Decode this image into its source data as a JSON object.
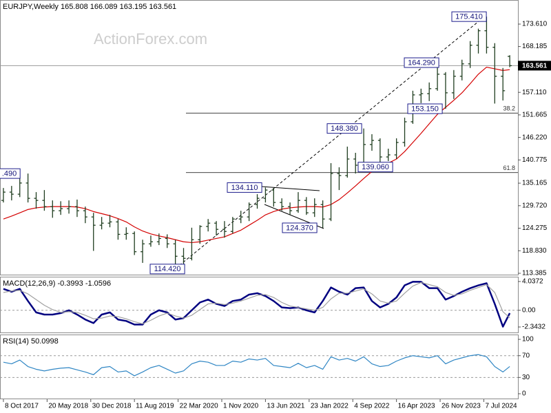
{
  "chart_data": [
    {
      "type": "ohlc",
      "title": "EURJPY,Weekly 165.808 166.089 163.195 163.561",
      "watermark": "ActionForex.com",
      "color": "#1f3d1f",
      "x": [
        0,
        6,
        12,
        18,
        24,
        30,
        36,
        42,
        48,
        54,
        60,
        66,
        72,
        78,
        84,
        90,
        96,
        102,
        108,
        114,
        120,
        126,
        132,
        138,
        144,
        150,
        156,
        162,
        168,
        174,
        180,
        186,
        192,
        198,
        204,
        210,
        216,
        222,
        228,
        234,
        240,
        246,
        252,
        258,
        264,
        270,
        276,
        282,
        288,
        294,
        300,
        306,
        312,
        318,
        324,
        330,
        336,
        342,
        348,
        354,
        360,
        366,
        371
      ],
      "open": [
        131.0,
        133.0,
        132.5,
        135.2,
        131.5,
        131.0,
        129.5,
        128.5,
        129.0,
        129.5,
        128.5,
        127.0,
        125.0,
        125.5,
        125.8,
        122.8,
        123.0,
        118.6,
        120.5,
        121.0,
        121.8,
        120.5,
        117.5,
        117.0,
        121.5,
        124.7,
        125.5,
        124.0,
        123.5,
        126.5,
        127.0,
        130.0,
        131.5,
        133.5,
        130.5,
        129.5,
        128.5,
        131.0,
        128.0,
        130.0,
        126.5,
        137.5,
        137.0,
        141.0,
        139.5,
        144.5,
        145.5,
        141.5,
        142.0,
        145.0,
        150.0,
        156.5,
        156.8,
        158.0,
        161.5,
        157.0,
        161.0,
        164.0,
        168.5,
        172.0,
        168.0,
        161.0,
        165.808
      ],
      "high": [
        134.0,
        134.5,
        136.5,
        137.49,
        133.0,
        133.5,
        131.0,
        130.8,
        131.0,
        131.2,
        129.5,
        128.0,
        127.0,
        127.5,
        126.5,
        124.5,
        123.5,
        121.5,
        122.5,
        123.0,
        122.8,
        121.5,
        119.5,
        124.4,
        125.0,
        126.5,
        126.0,
        126.0,
        127.0,
        128.5,
        130.5,
        132.5,
        134.11,
        134.0,
        131.5,
        130.5,
        133.0,
        131.8,
        131.5,
        131.0,
        140.0,
        139.0,
        144.0,
        142.5,
        148.38,
        147.0,
        146.0,
        143.5,
        146.0,
        151.0,
        157.5,
        158.0,
        159.5,
        164.29,
        162.0,
        162.5,
        165.0,
        169.5,
        172.5,
        175.41,
        169.0,
        163.0,
        166.089
      ],
      "low": [
        130.5,
        131.0,
        131.8,
        130.5,
        129.0,
        128.5,
        126.8,
        127.5,
        127.8,
        127.0,
        125.5,
        118.8,
        124.0,
        124.5,
        121.5,
        121.5,
        117.8,
        115.9,
        119.8,
        120.2,
        119.5,
        114.42,
        115.5,
        116.5,
        120.5,
        123.5,
        122.5,
        122.0,
        123.0,
        125.5,
        126.0,
        129.0,
        130.5,
        129.5,
        128.5,
        127.5,
        128.0,
        127.5,
        127.0,
        124.37,
        126.0,
        133.5,
        136.5,
        137.5,
        139.0,
        143.0,
        139.06,
        140.5,
        141.0,
        144.0,
        149.5,
        154.5,
        155.0,
        157.5,
        153.15,
        155.5,
        160.0,
        163.0,
        166.5,
        166.5,
        154.4,
        155.15,
        163.195
      ],
      "close": [
        133.0,
        132.5,
        135.2,
        131.5,
        131.0,
        129.5,
        128.5,
        129.0,
        129.5,
        128.5,
        127.0,
        125.0,
        125.5,
        125.8,
        122.8,
        123.0,
        118.6,
        120.5,
        121.0,
        121.8,
        120.5,
        117.5,
        117.0,
        121.5,
        124.7,
        125.5,
        124.0,
        123.5,
        126.5,
        127.0,
        130.0,
        131.5,
        133.5,
        130.5,
        129.5,
        128.5,
        131.0,
        128.0,
        130.0,
        126.5,
        137.5,
        137.0,
        141.0,
        139.5,
        144.5,
        145.5,
        141.5,
        142.0,
        145.0,
        150.0,
        156.5,
        156.8,
        158.0,
        161.5,
        157.0,
        161.0,
        164.0,
        168.5,
        172.0,
        168.0,
        161.0,
        157.5,
        163.561
      ],
      "series": [
        {
          "color": "#d40000",
          "values": [
            126.5,
            127.2,
            128.0,
            128.8,
            129.2,
            129.4,
            129.5,
            129.5,
            129.5,
            129.4,
            129.0,
            128.3,
            127.8,
            127.3,
            126.6,
            125.8,
            124.6,
            123.6,
            122.9,
            122.4,
            122.0,
            121.5,
            121.0,
            120.8,
            121.0,
            121.4,
            121.8,
            122.2,
            123.0,
            123.8,
            125.0,
            126.2,
            127.5,
            128.3,
            128.9,
            129.2,
            129.4,
            129.5,
            129.5,
            129.4,
            130.0,
            131.2,
            132.8,
            134.5,
            136.3,
            138.0,
            139.2,
            140.0,
            141.0,
            142.8,
            145.0,
            147.2,
            149.5,
            151.8,
            153.5,
            155.2,
            157.0,
            159.2,
            161.5,
            163.2,
            162.8,
            162.4,
            162.6
          ]
        }
      ],
      "xlim": [
        -2.5,
        377
      ],
      "ylim": [
        112.89,
        179.43
      ],
      "yticks": [
        {
          "value": 173.61,
          "label": "173.610"
        },
        168.185,
        {
          "value": 157.11,
          "label": "157.110"
        },
        151.665,
        {
          "value": 146.22,
          "label": "146.220"
        },
        140.775,
        135.165,
        {
          "value": 129.72,
          "label": "129.720"
        },
        124.275,
        {
          "value": 118.83,
          "label": "118.830"
        },
        113.385
      ],
      "last_price": 163.561,
      "levels": [
        {
          "value": 152.11,
          "label": "38.2"
        },
        {
          "value": 137.72,
          "label": "61.8"
        }
      ],
      "annotations": [
        {
          "value": 175.41,
          "label": "175.410"
        },
        {
          "value": 164.29,
          "label": "164.290"
        },
        {
          "value": 153.15,
          "label": "153.150"
        },
        {
          "value": 148.38,
          "label": "148.380"
        },
        {
          "value": 139.06,
          "label": "139.060"
        },
        {
          "value": 134.11,
          "label": "134.110"
        },
        {
          "value": 124.37,
          "label": "124.370"
        },
        {
          "value": 114.42,
          "label": "114.420"
        },
        {
          "value": 137.49,
          "label": ".490"
        }
      ]
    },
    {
      "type": "line",
      "title": "MACD(12,26,9) -0.3993 -1.0596",
      "x": [
        0,
        6,
        12,
        18,
        24,
        30,
        36,
        42,
        48,
        54,
        60,
        66,
        72,
        78,
        84,
        90,
        96,
        102,
        108,
        114,
        120,
        126,
        132,
        138,
        144,
        150,
        156,
        162,
        168,
        174,
        180,
        186,
        192,
        198,
        204,
        210,
        216,
        222,
        228,
        234,
        240,
        246,
        252,
        258,
        264,
        270,
        276,
        282,
        288,
        294,
        300,
        306,
        312,
        318,
        324,
        330,
        336,
        342,
        348,
        354,
        360,
        366,
        371
      ],
      "series": [
        {
          "color": "#000080",
          "values": [
            3.0,
            2.6,
            3.0,
            1.3,
            -0.3,
            -0.6,
            -0.6,
            -0.4,
            0.0,
            -0.6,
            -1.3,
            -1.8,
            -0.6,
            -0.3,
            -1.3,
            -1.5,
            -2.0,
            -2.0,
            -0.6,
            0.0,
            -0.3,
            -1.3,
            -1.1,
            0.0,
            1.1,
            1.5,
            0.9,
            0.6,
            1.3,
            1.5,
            2.2,
            2.4,
            2.0,
            1.3,
            0.4,
            0.3,
            0.4,
            0.0,
            -0.3,
            1.3,
            3.2,
            2.6,
            2.2,
            3.1,
            3.2,
            1.3,
            0.4,
            0.9,
            1.8,
            3.5,
            4.0,
            4.0,
            3.1,
            3.1,
            1.5,
            2.0,
            2.6,
            3.1,
            3.5,
            3.8,
            0.9,
            -2.3,
            -0.3993
          ]
        },
        {
          "color": "#a0a0a0",
          "values": [
            2.5,
            2.7,
            2.8,
            2.3,
            1.5,
            0.7,
            0.1,
            -0.3,
            -0.2,
            -0.3,
            -0.7,
            -1.2,
            -1.1,
            -0.8,
            -0.9,
            -1.2,
            -1.6,
            -1.9,
            -1.4,
            -0.8,
            -0.4,
            -0.8,
            -1.1,
            -0.7,
            0.1,
            0.9,
            1.0,
            0.8,
            1.0,
            1.3,
            1.7,
            2.1,
            2.2,
            1.8,
            1.1,
            0.6,
            0.4,
            0.2,
            0.0,
            0.4,
            1.6,
            2.4,
            2.4,
            2.7,
            3.0,
            2.3,
            1.3,
            1.0,
            1.3,
            2.4,
            3.4,
            3.9,
            3.6,
            3.3,
            2.5,
            2.1,
            2.3,
            2.8,
            3.2,
            3.6,
            2.5,
            -0.2,
            -1.0596
          ]
        }
      ],
      "xlim": [
        -2.5,
        377
      ],
      "ylim": [
        -3.21,
        4.71
      ],
      "yticks": [
        4.0372,
        {
          "value": 0,
          "label": "0.00"
        },
        -2.3432
      ],
      "levels": [
        0
      ]
    },
    {
      "type": "line",
      "title": "RSI(14) 50.0998",
      "x": [
        0,
        6,
        12,
        18,
        24,
        30,
        36,
        42,
        48,
        54,
        60,
        66,
        72,
        78,
        84,
        90,
        96,
        102,
        108,
        114,
        120,
        126,
        132,
        138,
        144,
        150,
        156,
        162,
        168,
        174,
        180,
        186,
        192,
        198,
        204,
        210,
        216,
        222,
        228,
        234,
        240,
        246,
        252,
        258,
        264,
        270,
        276,
        282,
        288,
        294,
        300,
        306,
        312,
        318,
        324,
        330,
        336,
        342,
        348,
        354,
        360,
        366,
        371
      ],
      "series": [
        {
          "color": "#2f86c4",
          "values": [
            58,
            55,
            62,
            50,
            45,
            42,
            45,
            47,
            48,
            44,
            40,
            35,
            48,
            50,
            40,
            42,
            33,
            40,
            48,
            52,
            45,
            38,
            42,
            55,
            60,
            58,
            52,
            52,
            60,
            58,
            64,
            62,
            65,
            52,
            50,
            48,
            56,
            48,
            52,
            45,
            68,
            62,
            65,
            60,
            68,
            55,
            50,
            52,
            60,
            66,
            70,
            68,
            66,
            70,
            55,
            62,
            66,
            70,
            72,
            68,
            50,
            40,
            50.0998
          ]
        }
      ],
      "xlim": [
        -2.5,
        377
      ],
      "ylim": [
        -10.1,
        108.9
      ],
      "yticks": [
        100,
        70,
        30,
        0
      ],
      "levels": [
        70,
        30
      ],
      "xticks": [
        {
          "value": 0,
          "label": "8 Oct 2017"
        },
        {
          "value": 32,
          "label": "20 May 2018"
        },
        {
          "value": 64,
          "label": "30 Dec 2018"
        },
        {
          "value": 96,
          "label": "11 Aug 2019"
        },
        {
          "value": 128,
          "label": "22 Mar 2020"
        },
        {
          "value": 160,
          "label": "1 Nov 2020"
        },
        {
          "value": 192,
          "label": "13 Jun 2021"
        },
        {
          "value": 224,
          "label": "23 Jan 2022"
        },
        {
          "value": 256,
          "label": "4 Sep 2022"
        },
        {
          "value": 288,
          "label": "16 Apr 2023"
        },
        {
          "value": 320,
          "label": "26 Nov 2023"
        },
        {
          "value": 352,
          "label": "7 Jul 2024"
        }
      ]
    }
  ]
}
